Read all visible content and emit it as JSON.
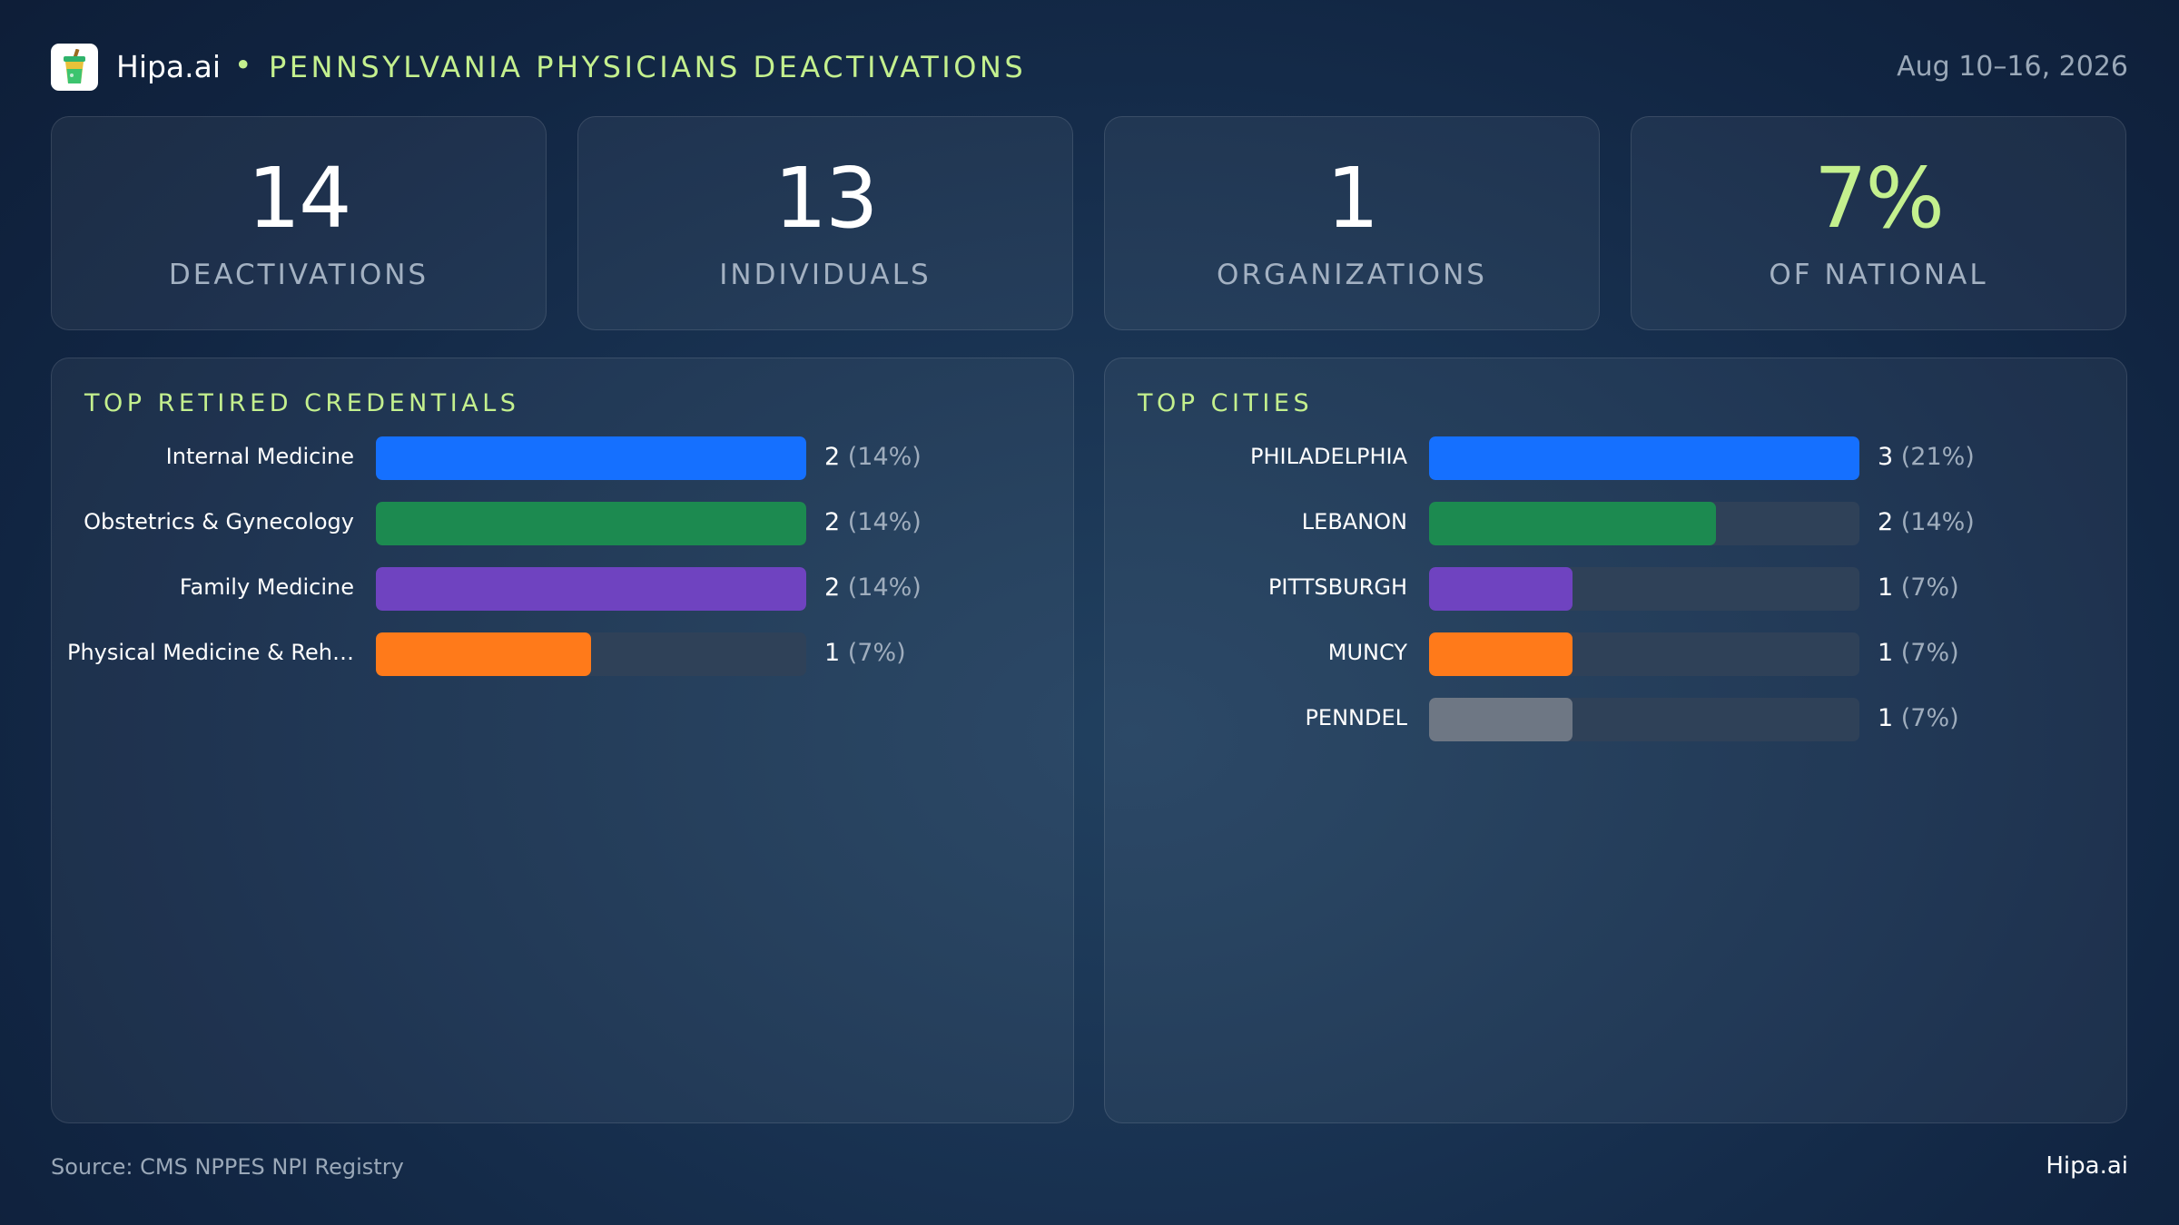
{
  "header": {
    "brand": "Hipa.ai",
    "separator": "•",
    "title": "PENNSYLVANIA  PHYSICIANS DEACTIVATIONS",
    "date_range": "Aug 10–16, 2026"
  },
  "kpis": [
    {
      "value": "14",
      "label": "DEACTIVATIONS"
    },
    {
      "value": "13",
      "label": "INDIVIDUALS"
    },
    {
      "value": "1",
      "label": "ORGANIZATIONS"
    },
    {
      "value": "7%",
      "label": "OF NATIONAL"
    }
  ],
  "colors": {
    "accent": "#c4f08e",
    "blue": "#1570ff",
    "green": "#1c8a50",
    "purple": "#6f43c0",
    "orange": "#ff7a1a",
    "gray": "#6e7784",
    "track": "#2f4158"
  },
  "chart_data": [
    {
      "type": "bar",
      "orientation": "horizontal",
      "title": "TOP RETIRED CREDENTIALS",
      "categories": [
        "Internal Medicine",
        "Obstetrics & Gynecology",
        "Family Medicine",
        "Physical Medicine & Reh…"
      ],
      "values": [
        2,
        2,
        2,
        1
      ],
      "percent_labels": [
        "(14%)",
        "(14%)",
        "(14%)",
        "(7%)"
      ],
      "bar_colors": [
        "#1570ff",
        "#1c8a50",
        "#6f43c0",
        "#ff7a1a"
      ],
      "xlim": [
        0,
        2
      ]
    },
    {
      "type": "bar",
      "orientation": "horizontal",
      "title": "TOP CITIES",
      "categories": [
        "PHILADELPHIA",
        "LEBANON",
        "PITTSBURGH",
        "MUNCY",
        "PENNDEL"
      ],
      "values": [
        3,
        2,
        1,
        1,
        1
      ],
      "percent_labels": [
        "(21%)",
        "(14%)",
        "(7%)",
        "(7%)",
        "(7%)"
      ],
      "bar_colors": [
        "#1570ff",
        "#1c8a50",
        "#6f43c0",
        "#ff7a1a",
        "#6e7784"
      ],
      "xlim": [
        0,
        3
      ]
    }
  ],
  "footer": {
    "source": "Source: CMS NPPES NPI Registry",
    "brand": "Hipa.ai"
  }
}
